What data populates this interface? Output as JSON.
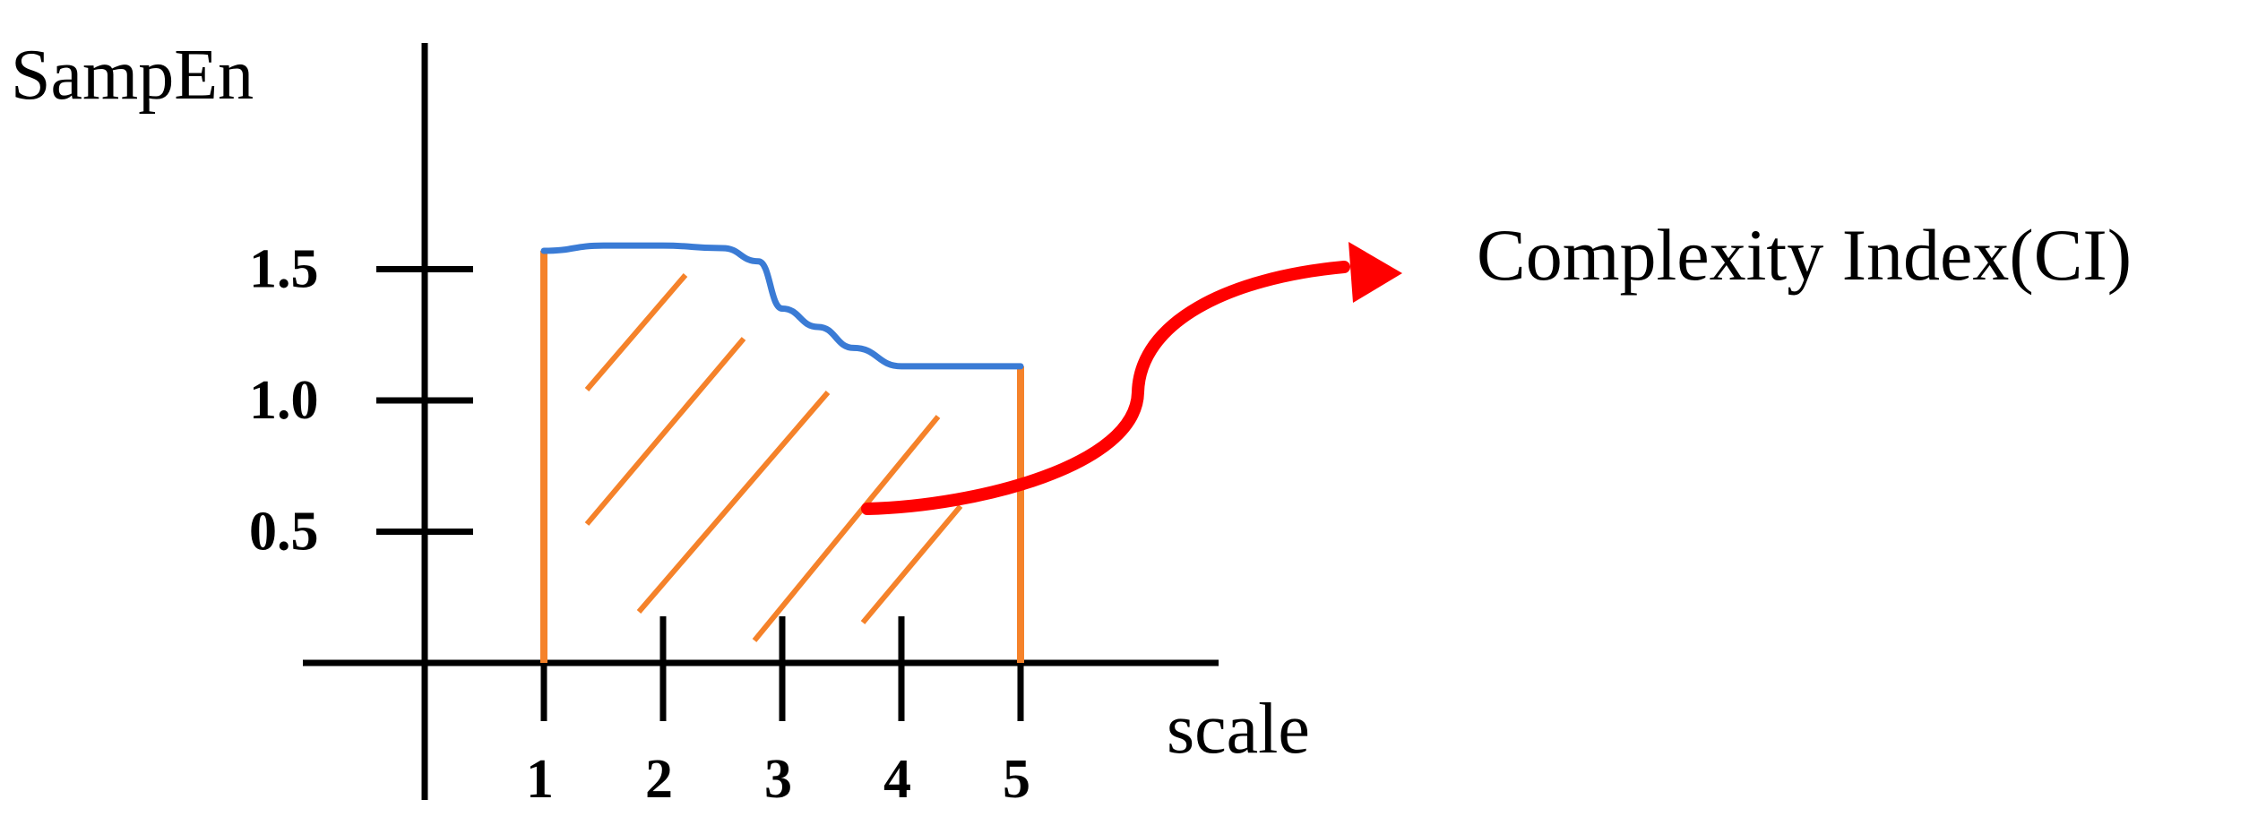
{
  "chart_data": {
    "type": "area",
    "ylabel": "SampEn",
    "xlabel": "scale",
    "x_ticks": [
      "1",
      "2",
      "3",
      "4",
      "5"
    ],
    "y_ticks": [
      "0.5",
      "1.0",
      "1.5"
    ],
    "x": [
      1,
      1.5,
      2,
      2.5,
      2.8,
      3,
      3.3,
      3.6,
      4,
      4.5,
      5
    ],
    "y": [
      1.57,
      1.59,
      1.59,
      1.58,
      1.53,
      1.35,
      1.28,
      1.2,
      1.13,
      1.13,
      1.13
    ],
    "xlim": [
      0,
      6
    ],
    "ylim": [
      0,
      2
    ],
    "annotation": "Complexity Index(CI)",
    "colors": {
      "curve": "#3a7bd5",
      "area_hatch": "#f5822a",
      "bounds": "#f5822a",
      "arrow": "#ff0000",
      "axes": "#000000"
    }
  }
}
